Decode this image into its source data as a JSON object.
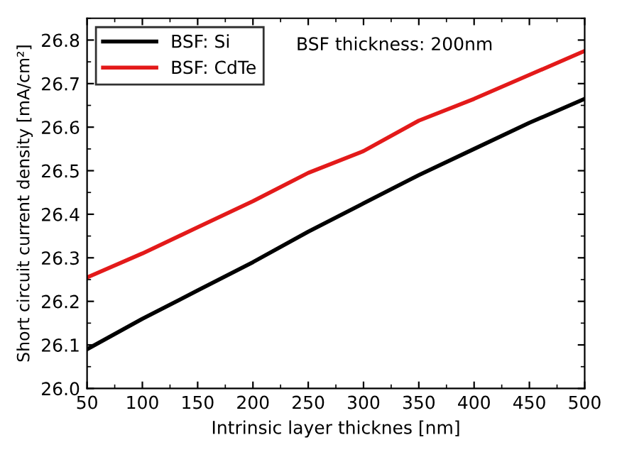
{
  "chart_data": {
    "type": "line",
    "xlabel": "Intrinsic layer thicknes [nm]",
    "ylabel": "Short circuit current density [mA/cm²]",
    "x": [
      50,
      100,
      150,
      200,
      250,
      300,
      350,
      400,
      450,
      500
    ],
    "series": [
      {
        "name": "BSF: Si",
        "color": "#000000",
        "values": [
          26.09,
          26.16,
          26.225,
          26.29,
          26.36,
          26.425,
          26.49,
          26.55,
          26.61,
          26.665
        ]
      },
      {
        "name": "BSF: CdTe",
        "color": "#e31a1a",
        "values": [
          26.255,
          26.31,
          26.37,
          26.43,
          26.495,
          26.545,
          26.615,
          26.665,
          26.72,
          26.775
        ]
      }
    ],
    "annotations": [
      "BSF thickness: 200nm"
    ],
    "xlim": [
      50,
      500
    ],
    "xticks": [
      50,
      100,
      150,
      200,
      250,
      300,
      350,
      400,
      450,
      500
    ],
    "ylim": [
      26.0,
      26.85
    ],
    "yticks": [
      {
        "value": 26.0,
        "label": "26.0"
      },
      26.1,
      26.2,
      26.3,
      26.4,
      26.5,
      26.6,
      26.7,
      26.8
    ],
    "legend": "top left",
    "grid": false,
    "marker": "none",
    "line_style": "solid"
  }
}
